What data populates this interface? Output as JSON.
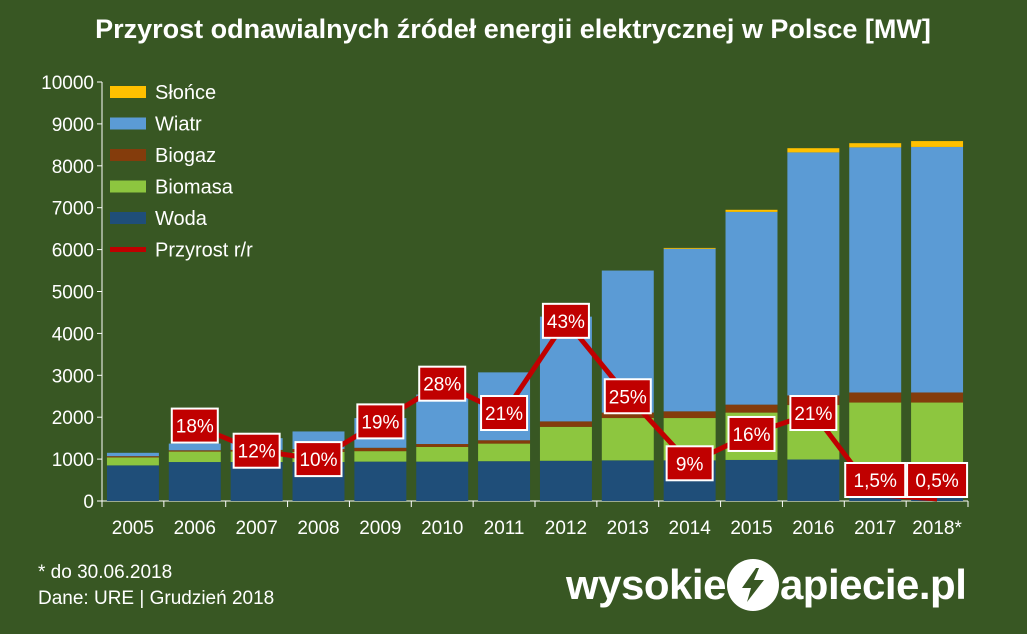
{
  "chart_data": {
    "type": "bar",
    "title": "Przyrost odnawialnych źródeł energii elektrycznej w Polsce [MW]",
    "categories": [
      "2005",
      "2006",
      "2007",
      "2008",
      "2009",
      "2010",
      "2011",
      "2012",
      "2013",
      "2014",
      "2015",
      "2016",
      "2017",
      "2018*"
    ],
    "ylim": [
      0,
      10000
    ],
    "yticks": [
      0,
      1000,
      2000,
      3000,
      4000,
      5000,
      6000,
      7000,
      8000,
      9000,
      10000
    ],
    "grid": false,
    "legend_position": "top-left",
    "series": [
      {
        "name": "Woda",
        "color": "#1f4e79",
        "values": [
          850,
          930,
          930,
          930,
          940,
          940,
          950,
          960,
          970,
          970,
          980,
          990,
          590,
          590
        ]
      },
      {
        "name": "Biomasa",
        "color": "#8dc63f",
        "values": [
          190,
          250,
          250,
          240,
          250,
          350,
          420,
          810,
          1010,
          1010,
          1130,
          1300,
          1760,
          1760
        ]
      },
      {
        "name": "Biogaz",
        "color": "#843c0c",
        "values": [
          30,
          30,
          40,
          70,
          80,
          70,
          80,
          130,
          130,
          160,
          190,
          230,
          240,
          240
        ]
      },
      {
        "name": "Wiatr",
        "color": "#5b9bd5",
        "values": [
          80,
          160,
          280,
          420,
          710,
          1180,
          1620,
          2500,
          3390,
          3880,
          4600,
          5800,
          5850,
          5860
        ]
      },
      {
        "name": "Słońce",
        "color": "#ffc000",
        "values": [
          0,
          0,
          0,
          0,
          0,
          0,
          0,
          0,
          0,
          20,
          50,
          100,
          100,
          140
        ]
      }
    ],
    "line_series": {
      "name": "Przyrost r/r",
      "color": "#c00000",
      "unit": "%",
      "x": [
        "2006",
        "2007",
        "2008",
        "2009",
        "2010",
        "2011",
        "2012",
        "2013",
        "2014",
        "2015",
        "2016",
        "2017",
        "2018*"
      ],
      "values": [
        18,
        12,
        10,
        19,
        28,
        21,
        43,
        25,
        9,
        16,
        21,
        1.5,
        0.5
      ],
      "labels": [
        "18%",
        "12%",
        "10%",
        "19%",
        "28%",
        "21%",
        "43%",
        "25%",
        "9%",
        "16%",
        "21%",
        "1,5%",
        "0,5%"
      ]
    },
    "legend": [
      "Słońce",
      "Wiatr",
      "Biogaz",
      "Biomasa",
      "Woda",
      "Przyrost r/r"
    ]
  },
  "footnotes": {
    "note": "* do 30.06.2018",
    "source": "Dane: URE  |  Grudzień 2018"
  },
  "logo": {
    "left": "wysokie",
    "right": "apiecie.pl",
    "icon": "lightning-bolt-icon"
  }
}
